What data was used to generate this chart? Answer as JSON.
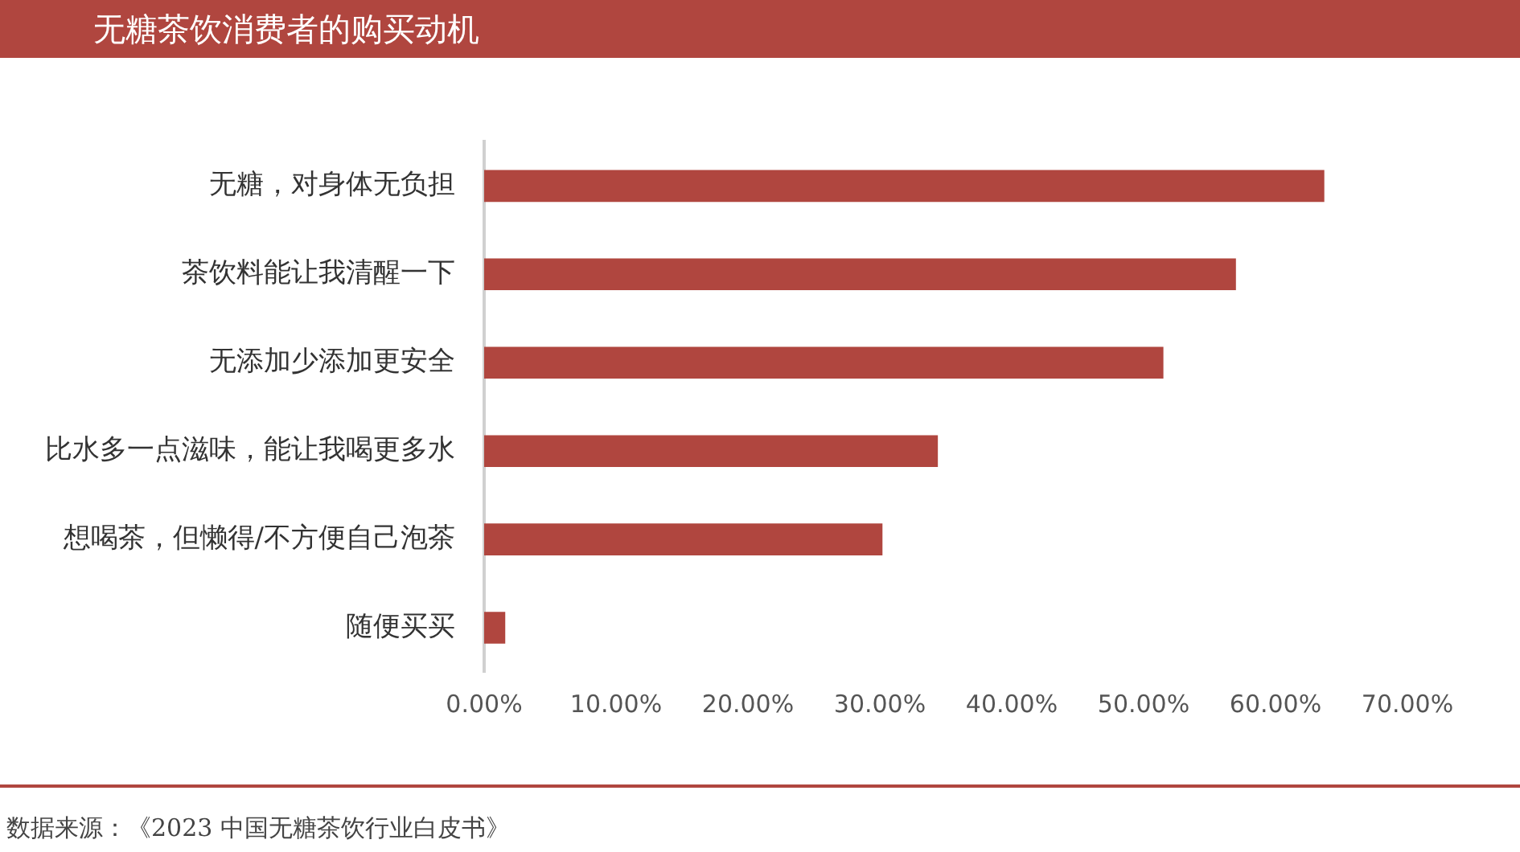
{
  "chart_data": {
    "type": "bar",
    "orientation": "horizontal",
    "title": "无糖茶饮消费者的购买动机",
    "categories": [
      "无糖，对身体无负担",
      "茶饮料能让我清醒一下",
      "无添加少添加更安全",
      "比水多一点滋味，能让我喝更多水",
      "想喝茶，但懒得/不方便自己泡茶",
      "随便买买"
    ],
    "values": [
      63.7,
      57.0,
      51.5,
      34.4,
      30.2,
      1.6
    ],
    "color": "#b0463f",
    "xlim": [
      0,
      70
    ],
    "xticks": [
      {
        "value": 0,
        "label": "0.00%"
      },
      {
        "value": 10,
        "label": "10.00%"
      },
      {
        "value": 20,
        "label": "20.00%"
      },
      {
        "value": 30,
        "label": "30.00%"
      },
      {
        "value": 40,
        "label": "40.00%"
      },
      {
        "value": 50,
        "label": "50.00%"
      },
      {
        "value": 60,
        "label": "60.00%"
      },
      {
        "value": 70,
        "label": "70.00%"
      }
    ],
    "grid": false,
    "legend": false,
    "annotations": [
      "数据来源：《2023 中国无糖茶饮行业白皮书》"
    ]
  }
}
